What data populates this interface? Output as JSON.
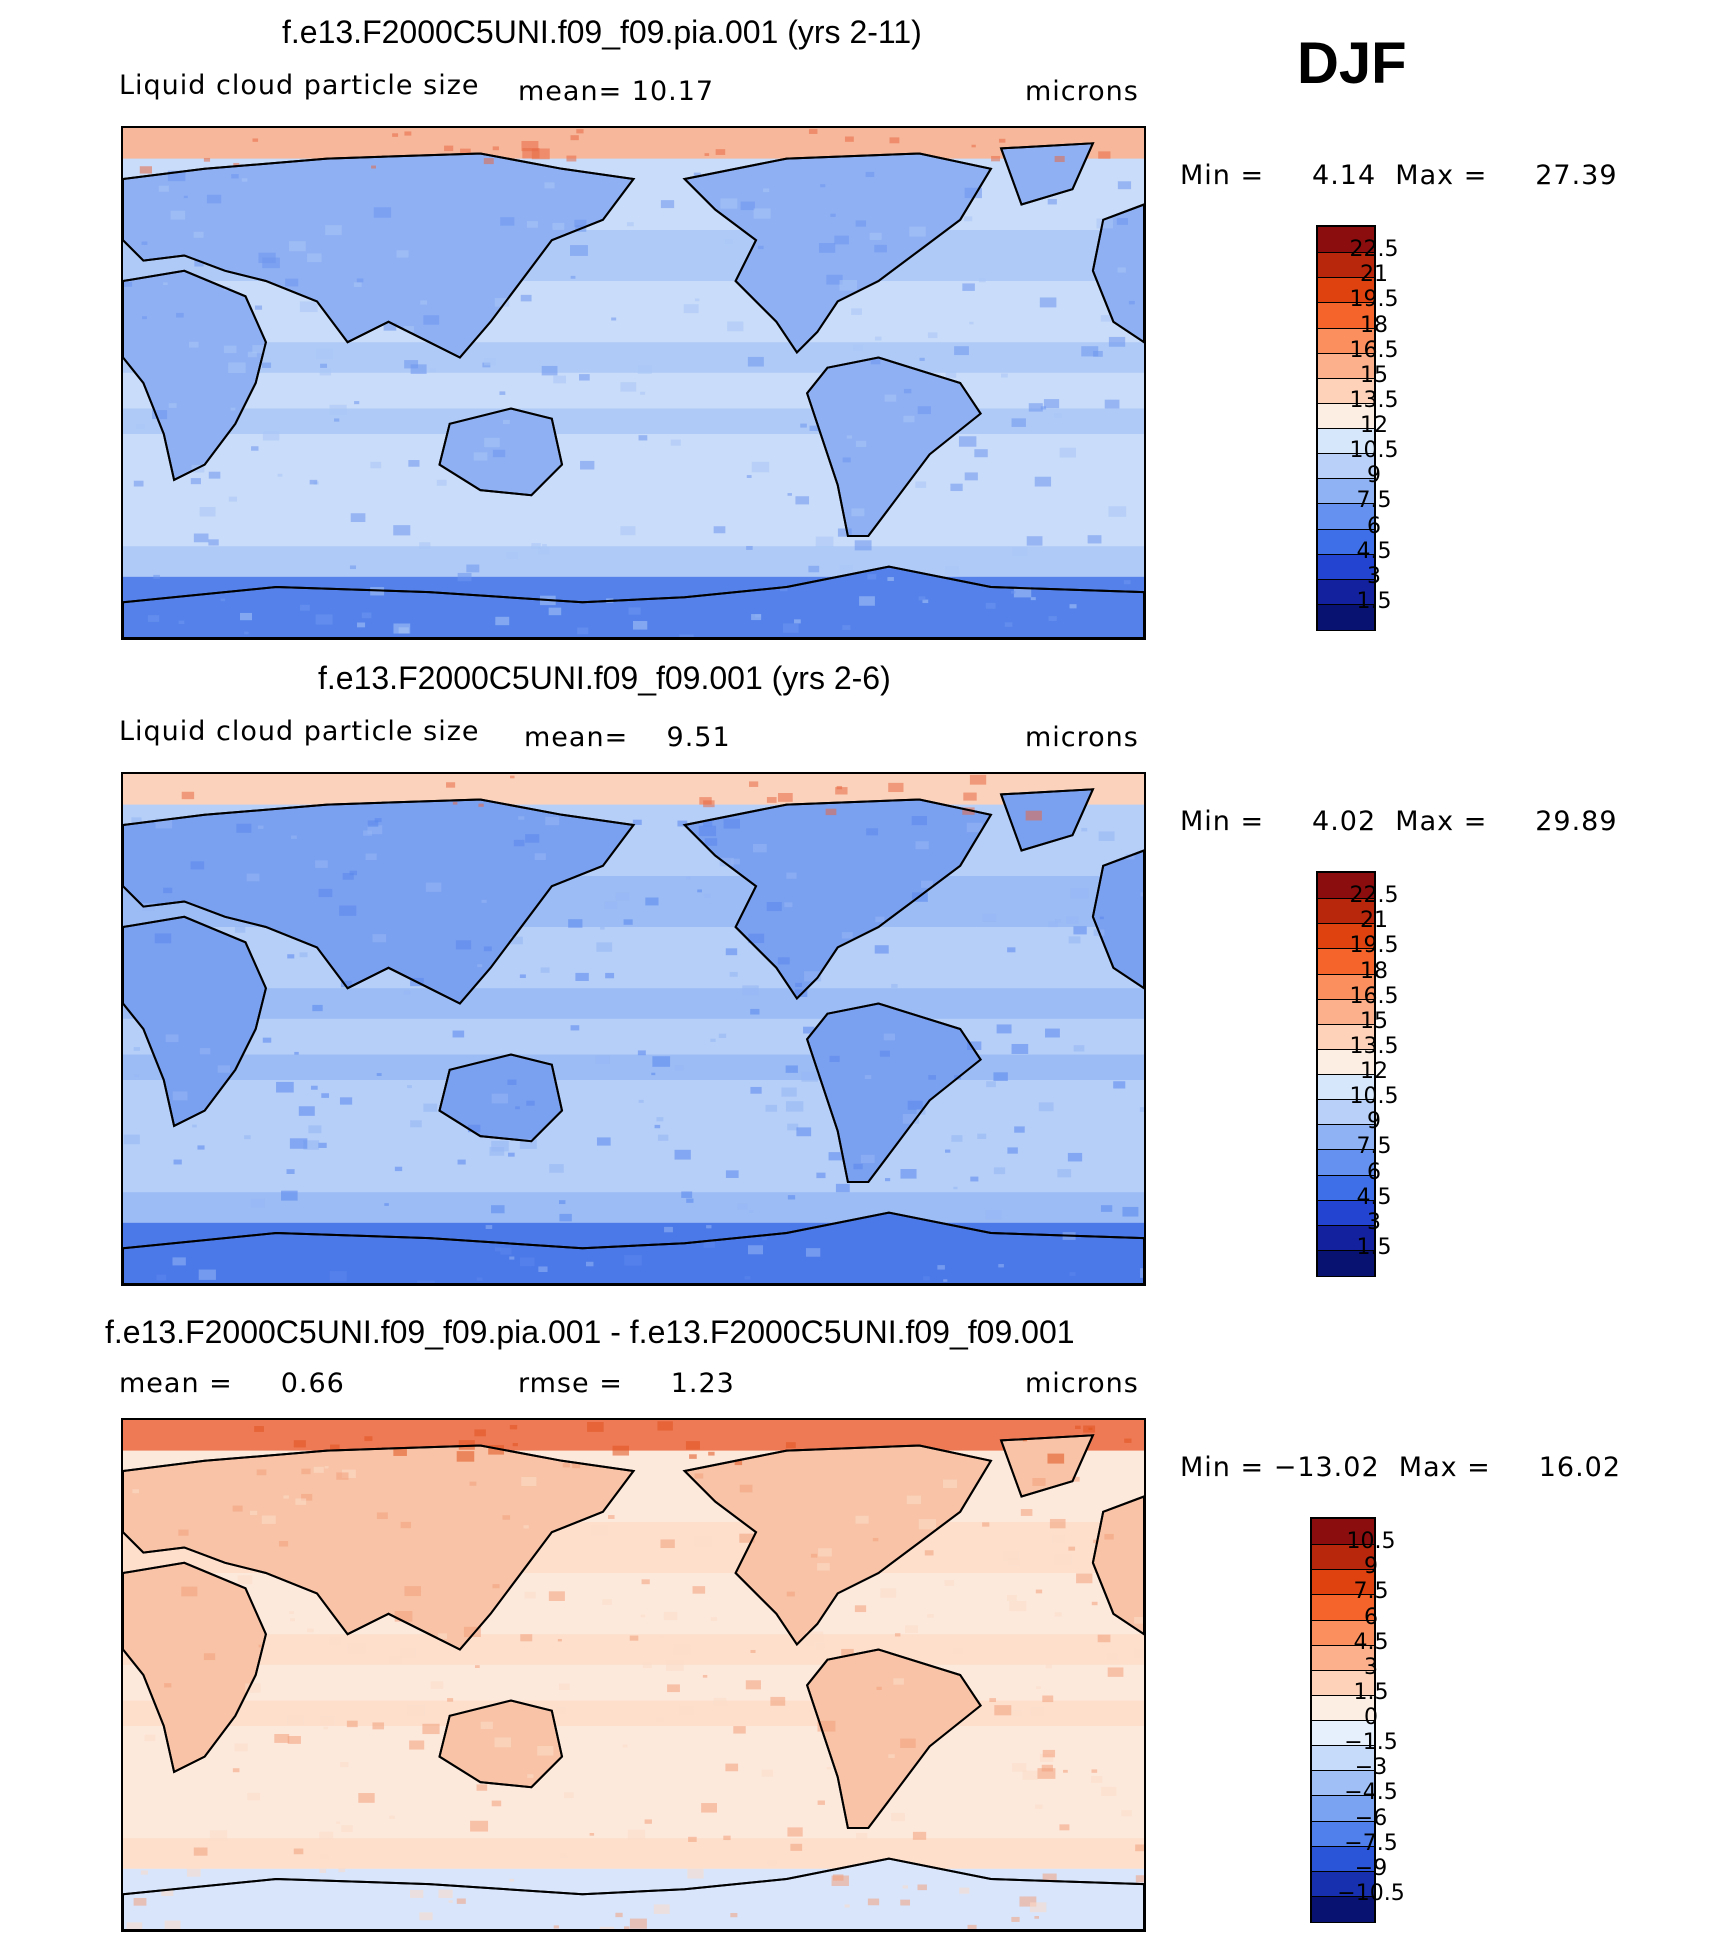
{
  "season": "DJF",
  "panels": [
    {
      "title": "f.e13.F2000C5UNI.f09_f09.pia.001 (yrs 2-11)",
      "left_label": "Liquid cloud particle size",
      "center_label": "mean=   10.17",
      "right_label": "microns",
      "minmax": "Min =     4.14  Max =     27.39",
      "legend_labels": [
        "22.5",
        "21",
        "19.5",
        "18",
        "16.5",
        "15",
        "13.5",
        "12",
        "10.5",
        "9",
        "7.5",
        "6",
        "4.5",
        "3",
        "1.5"
      ],
      "legend_colors": [
        "#8b0d0d",
        "#b8260b",
        "#e0420f",
        "#f5642a",
        "#fb8f5d",
        "#fcb08c",
        "#fdd2b8",
        "#fdeee3",
        "#d6e6fb",
        "#b9d1f9",
        "#8fb2f5",
        "#6592f0",
        "#3f6fe8",
        "#2244d0",
        "#13219e",
        "#081270"
      ],
      "map_palette": {
        "ocean": "#c9dcf9",
        "ocean_band": "#a9c6f6",
        "land": "#8fb0f3",
        "land_dark": "#6e96ee",
        "polar_n": "#f6b79a",
        "polar_s": "#5482ea",
        "hot": "#e86a45"
      }
    },
    {
      "title": "f.e13.F2000C5UNI.f09_f09.001 (yrs 2-6)",
      "left_label": "Liquid cloud particle size",
      "center_label": "mean=    9.51",
      "right_label": "microns",
      "minmax": "Min =     4.02  Max =     29.89",
      "legend_labels": [
        "22.5",
        "21",
        "19.5",
        "18",
        "16.5",
        "15",
        "13.5",
        "12",
        "10.5",
        "9",
        "7.5",
        "6",
        "4.5",
        "3",
        "1.5"
      ],
      "legend_colors": [
        "#8b0d0d",
        "#b8260b",
        "#e0420f",
        "#f5642a",
        "#fb8f5d",
        "#fcb08c",
        "#fdd2b8",
        "#fdeee3",
        "#d6e6fb",
        "#b9d1f9",
        "#8fb2f5",
        "#6592f0",
        "#3f6fe8",
        "#2244d0",
        "#13219e",
        "#081270"
      ],
      "map_palette": {
        "ocean": "#b6cff8",
        "ocean_band": "#96b7f4",
        "land": "#7aa0f0",
        "land_dark": "#5a86ec",
        "polar_n": "#fbd3bc",
        "polar_s": "#4c79e8",
        "hot": "#e86a45"
      }
    },
    {
      "title": "f.e13.F2000C5UNI.f09_f09.pia.001 - f.e13.F2000C5UNI.f09_f09.001",
      "left_label": "mean =     0.66",
      "center_label": "rmse =     1.23",
      "right_label": "microns",
      "minmax": "Min = −13.02  Max =     16.02",
      "legend_labels": [
        "10.5",
        "9",
        "7.5",
        "6",
        "4.5",
        "3",
        "1.5",
        "0",
        "−1.5",
        "−3",
        "−4.5",
        "−6",
        "−7.5",
        "−9",
        "−10.5"
      ],
      "legend_colors": [
        "#8b0d0d",
        "#b8260b",
        "#e0420f",
        "#f5642a",
        "#fb8f5d",
        "#fcb08c",
        "#fdd2b8",
        "#fdeee3",
        "#e6effc",
        "#c6daf9",
        "#9fbff6",
        "#7aa3f1",
        "#4f80ec",
        "#2a55d9",
        "#1630b0",
        "#081270"
      ],
      "map_palette": {
        "ocean": "#fde9dc",
        "ocean_band": "#fcdcc8",
        "land": "#f8c3a6",
        "land_dark": "#f2a07d",
        "polar_n": "#ee7a55",
        "polar_s": "#d8e5fb",
        "hot": "#e0521f"
      }
    }
  ]
}
